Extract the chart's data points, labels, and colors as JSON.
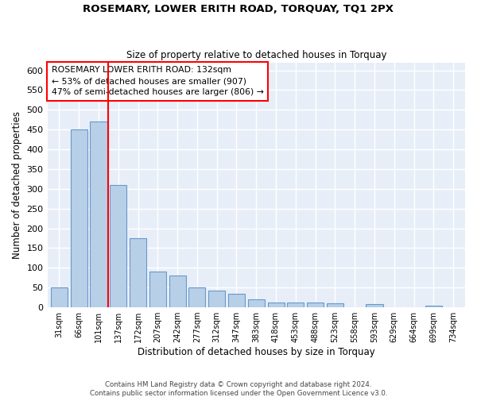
{
  "title": "ROSEMARY, LOWER ERITH ROAD, TORQUAY, TQ1 2PX",
  "subtitle": "Size of property relative to detached houses in Torquay",
  "xlabel": "Distribution of detached houses by size in Torquay",
  "ylabel": "Number of detached properties",
  "categories": [
    "31sqm",
    "66sqm",
    "101sqm",
    "137sqm",
    "172sqm",
    "207sqm",
    "242sqm",
    "277sqm",
    "312sqm",
    "347sqm",
    "383sqm",
    "418sqm",
    "453sqm",
    "488sqm",
    "523sqm",
    "558sqm",
    "593sqm",
    "629sqm",
    "664sqm",
    "699sqm",
    "734sqm"
  ],
  "values": [
    50,
    450,
    470,
    310,
    175,
    90,
    80,
    50,
    43,
    35,
    20,
    13,
    12,
    12,
    10,
    0,
    8,
    0,
    0,
    5,
    0
  ],
  "bar_color": "#b8cfe8",
  "bar_edge_color": "#6699cc",
  "property_line_x": 2.5,
  "annotation_text": "ROSEMARY LOWER ERITH ROAD: 132sqm\n← 53% of detached houses are smaller (907)\n47% of semi-detached houses are larger (806) →",
  "annotation_box_color": "white",
  "annotation_box_edge_color": "red",
  "line_color": "red",
  "background_color": "#e8eef8",
  "grid_color": "white",
  "ylim": [
    0,
    620
  ],
  "yticks": [
    0,
    50,
    100,
    150,
    200,
    250,
    300,
    350,
    400,
    450,
    500,
    550,
    600
  ],
  "footer_line1": "Contains HM Land Registry data © Crown copyright and database right 2024.",
  "footer_line2": "Contains public sector information licensed under the Open Government Licence v3.0."
}
